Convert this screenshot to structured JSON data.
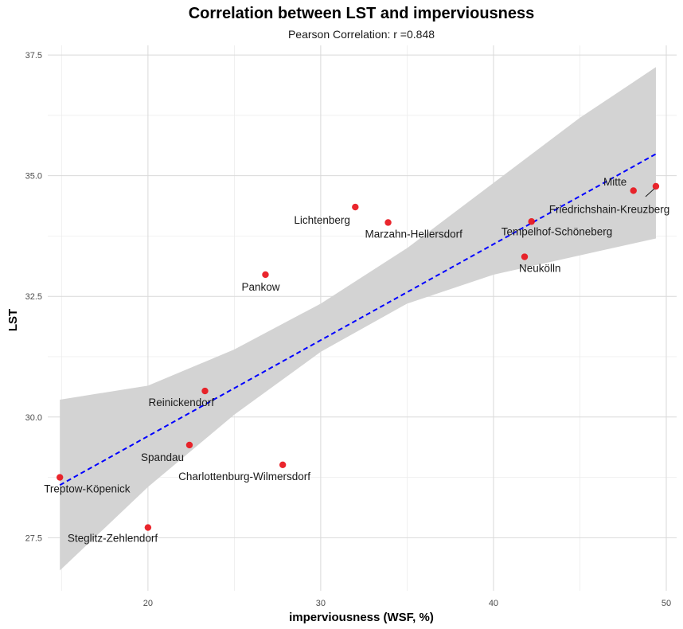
{
  "chart_data": {
    "type": "scatter",
    "title": "Correlation between LST and imperviousness",
    "subtitle": "Pearson Correlation: r =0.848",
    "xlabel": "imperviousness (WSF, %)",
    "ylabel": "LST",
    "xlim": [
      14.2,
      50.6
    ],
    "ylim": [
      26.4,
      37.7
    ],
    "x_ticks": [
      20,
      30,
      40,
      50
    ],
    "y_ticks": [
      27.5,
      30.0,
      32.5,
      35.0,
      37.5
    ],
    "y_tick_labels": [
      "27.5",
      "30.0",
      "32.5",
      "35.0",
      "37.5"
    ],
    "grid": true,
    "points": [
      {
        "label": "Mitte",
        "x": 49.4,
        "y": 34.78
      },
      {
        "label": "Friedrichshain-Kreuzberg",
        "x": 48.1,
        "y": 34.69
      },
      {
        "label": "Lichtenberg",
        "x": 32.0,
        "y": 34.35
      },
      {
        "label": "Marzahn-Hellersdorf",
        "x": 33.9,
        "y": 34.03
      },
      {
        "label": "Tempelhof-Schöneberg",
        "x": 42.2,
        "y": 34.05
      },
      {
        "label": "Neukölln",
        "x": 41.8,
        "y": 33.32
      },
      {
        "label": "Pankow",
        "x": 26.8,
        "y": 32.95
      },
      {
        "label": "Reinickendorf",
        "x": 23.3,
        "y": 30.54
      },
      {
        "label": "Spandau",
        "x": 22.4,
        "y": 29.42
      },
      {
        "label": "Charlottenburg-Wilmersdorf",
        "x": 27.8,
        "y": 29.01
      },
      {
        "label": "Treptow-Köpenick",
        "x": 14.9,
        "y": 28.75
      },
      {
        "label": "Steglitz-Zehlendorf",
        "x": 20.0,
        "y": 27.71
      }
    ],
    "regression": {
      "x": [
        14.9,
        49.4
      ],
      "y": [
        28.59,
        35.45
      ],
      "color": "#0000ff",
      "style": "dashed"
    },
    "confidence_band": {
      "x": [
        14.9,
        20.0,
        25.0,
        30.0,
        35.0,
        40.0,
        45.0,
        49.4
      ],
      "lower": [
        26.82,
        28.55,
        30.05,
        31.35,
        32.35,
        32.95,
        33.35,
        33.7
      ],
      "upper": [
        30.36,
        30.65,
        31.4,
        32.35,
        33.5,
        34.85,
        36.2,
        37.25
      ],
      "color": "#d3d3d3"
    },
    "point_color": "#e8141b"
  }
}
